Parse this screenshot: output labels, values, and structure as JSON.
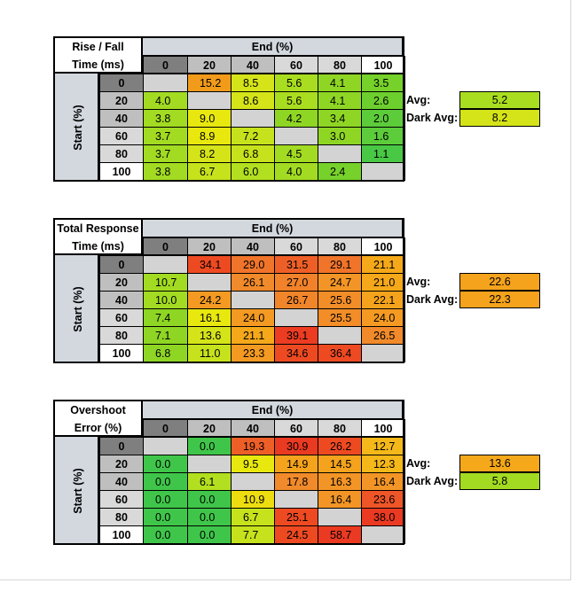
{
  "chart_data": [
    {
      "type": "heatmap",
      "corner_label": [
        "Rise / Fall",
        "Time (ms)"
      ],
      "xlabel": "End (%)",
      "ylabel": "Start (%)",
      "columns": [
        "0",
        "20",
        "40",
        "60",
        "80",
        "100"
      ],
      "rows": [
        "0",
        "20",
        "40",
        "60",
        "80",
        "100"
      ],
      "values": [
        [
          "",
          "15.2",
          "8.5",
          "5.6",
          "4.1",
          "3.5"
        ],
        [
          "4.0",
          "",
          "8.6",
          "5.6",
          "4.1",
          "2.6"
        ],
        [
          "3.8",
          "9.0",
          "",
          "4.2",
          "3.4",
          "2.0"
        ],
        [
          "3.7",
          "8.9",
          "7.2",
          "",
          "3.0",
          "1.6"
        ],
        [
          "3.7",
          "8.2",
          "6.8",
          "4.5",
          "",
          "1.1"
        ],
        [
          "3.8",
          "6.7",
          "6.0",
          "4.0",
          "2.4",
          ""
        ]
      ],
      "colors": [
        [
          "#d3d3d3",
          "#f29b1b",
          "#d5e419",
          "#a9dd20",
          "#8fd624",
          "#76d12a"
        ],
        [
          "#a2db22",
          "#d3d3d3",
          "#d5e419",
          "#a9dd20",
          "#8fd624",
          "#6dcf2e"
        ],
        [
          "#a2db22",
          "#e8e80f",
          "#d3d3d3",
          "#8fd624",
          "#8fd624",
          "#5ccc3a"
        ],
        [
          "#a2db22",
          "#e8e80f",
          "#c6e21c",
          "#d3d3d3",
          "#8fd624",
          "#5ccc3a"
        ],
        [
          "#a2db22",
          "#d5e419",
          "#c6e21c",
          "#a2db22",
          "#d3d3d3",
          "#49c845"
        ],
        [
          "#a2db22",
          "#c6e21c",
          "#b2df1f",
          "#a2db22",
          "#76d12a",
          "#d3d3d3"
        ]
      ],
      "summary": [
        {
          "label": "Avg:",
          "value": "5.2",
          "color": "#a9dd20"
        },
        {
          "label": "Dark Avg:",
          "value": "8.2",
          "color": "#d5e419"
        }
      ]
    },
    {
      "type": "heatmap",
      "corner_label": [
        "Total Response",
        "Time (ms)"
      ],
      "xlabel": "End (%)",
      "ylabel": "Start (%)",
      "columns": [
        "0",
        "20",
        "40",
        "60",
        "80",
        "100"
      ],
      "rows": [
        "0",
        "20",
        "40",
        "60",
        "80",
        "100"
      ],
      "values": [
        [
          "",
          "34.1",
          "29.0",
          "31.5",
          "29.1",
          "21.1"
        ],
        [
          "10.7",
          "",
          "26.1",
          "27.0",
          "24.7",
          "21.0"
        ],
        [
          "10.0",
          "24.2",
          "",
          "26.7",
          "25.6",
          "22.1"
        ],
        [
          "7.4",
          "16.1",
          "24.0",
          "",
          "25.5",
          "24.0"
        ],
        [
          "7.1",
          "13.6",
          "21.1",
          "39.1",
          "",
          "26.5"
        ],
        [
          "6.8",
          "11.0",
          "23.3",
          "34.6",
          "36.4",
          ""
        ]
      ],
      "colors": [
        [
          "#d3d3d3",
          "#ee4a22",
          "#f0742a",
          "#ee5f27",
          "#f0742a",
          "#f5a81a"
        ],
        [
          "#a2db22",
          "#d3d3d3",
          "#f18a2a",
          "#f1822a",
          "#f39526",
          "#f5a81a"
        ],
        [
          "#a2db22",
          "#f49a22",
          "#d3d3d3",
          "#f1852a",
          "#f28d28",
          "#f5a31c"
        ],
        [
          "#8fd624",
          "#e8e80f",
          "#f49a22",
          "#d3d3d3",
          "#f28d28",
          "#f49a22"
        ],
        [
          "#8fd624",
          "#d5e419",
          "#f5a81a",
          "#ec3c22",
          "#d3d3d3",
          "#f18a2a"
        ],
        [
          "#8fd624",
          "#c6e21c",
          "#f49a22",
          "#ee4a22",
          "#ee4a22",
          "#d3d3d3"
        ]
      ],
      "summary": [
        {
          "label": "Avg:",
          "value": "22.6",
          "color": "#f5a31c"
        },
        {
          "label": "Dark Avg:",
          "value": "22.3",
          "color": "#f5a31c"
        }
      ]
    },
    {
      "type": "heatmap",
      "corner_label": [
        "Overshoot",
        "Error (%)"
      ],
      "xlabel": "End (%)",
      "ylabel": "Start (%)",
      "columns": [
        "0",
        "20",
        "40",
        "60",
        "80",
        "100"
      ],
      "rows": [
        "0",
        "20",
        "40",
        "60",
        "80",
        "100"
      ],
      "values": [
        [
          "",
          "0.0",
          "19.3",
          "30.9",
          "26.2",
          "12.7"
        ],
        [
          "0.0",
          "",
          "9.5",
          "14.9",
          "14.5",
          "12.3"
        ],
        [
          "0.0",
          "6.1",
          "",
          "17.8",
          "16.3",
          "16.4"
        ],
        [
          "0.0",
          "0.0",
          "10.9",
          "",
          "16.4",
          "23.6"
        ],
        [
          "0.0",
          "0.0",
          "6.7",
          "25.1",
          "",
          "38.0"
        ],
        [
          "0.0",
          "0.0",
          "7.7",
          "24.5",
          "58.7",
          ""
        ]
      ],
      "colors": [
        [
          "#d3d3d3",
          "#3fc64a",
          "#ee5f27",
          "#ea3a22",
          "#ee4a22",
          "#f5b81a"
        ],
        [
          "#3fc64a",
          "#d3d3d3",
          "#e8e80f",
          "#f5a31c",
          "#f5a31c",
          "#f5b81a"
        ],
        [
          "#3fc64a",
          "#b2df1f",
          "#d3d3d3",
          "#f18a2a",
          "#f39526",
          "#f39526"
        ],
        [
          "#3fc64a",
          "#3fc64a",
          "#eddd10",
          "#d3d3d3",
          "#f39526",
          "#ee5527"
        ],
        [
          "#3fc64a",
          "#3fc64a",
          "#c6e21c",
          "#ee4a22",
          "#d3d3d3",
          "#ea3a22"
        ],
        [
          "#3fc64a",
          "#3fc64a",
          "#c6e21c",
          "#ee4a22",
          "#ea3a22",
          "#d3d3d3"
        ]
      ],
      "summary": [
        {
          "label": "Avg:",
          "value": "13.6",
          "color": "#f5a81a"
        },
        {
          "label": "Dark Avg:",
          "value": "5.8",
          "color": "#a2db22"
        }
      ]
    }
  ]
}
